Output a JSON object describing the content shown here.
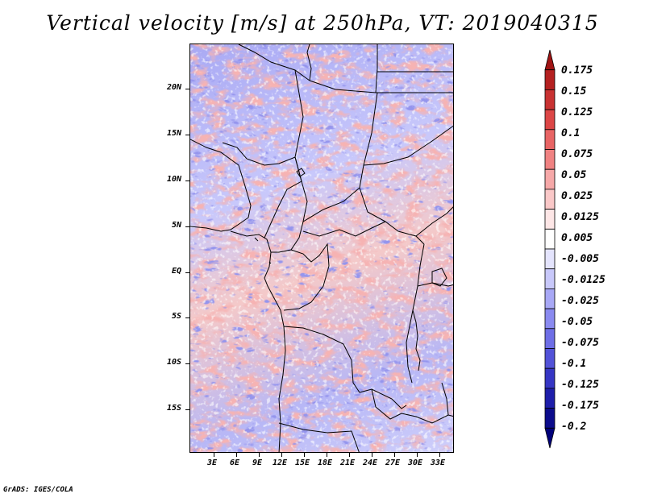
{
  "title": "Vertical velocity [m/s] at 250hPa, VT: 2019040315",
  "footer": "GrADS: IGES/COLA",
  "y_axis_labels": [
    "20N",
    "15N",
    "10N",
    "5N",
    "EQ",
    "5S",
    "10S",
    "15S"
  ],
  "x_axis_labels": [
    "3E",
    "6E",
    "9E",
    "12E",
    "15E",
    "18E",
    "21E",
    "24E",
    "27E",
    "30E",
    "33E"
  ],
  "legend": {
    "labels": [
      "0.175",
      "0.15",
      "0.125",
      "0.1",
      "0.075",
      "0.05",
      "0.025",
      "0.0125",
      "0.005",
      "-0.005",
      "-0.0125",
      "-0.025",
      "-0.05",
      "-0.075",
      "-0.1",
      "-0.125",
      "-0.175",
      "-0.2"
    ],
    "colors": [
      "#a01414",
      "#b42020",
      "#c83232",
      "#dc4646",
      "#e86464",
      "#f08282",
      "#f6a8a8",
      "#fac8c8",
      "#fde6e6",
      "#ffffff",
      "#e4e4fd",
      "#c8c8fa",
      "#a8a8f6",
      "#8a8af0",
      "#6e6ee6",
      "#5252d8",
      "#3636c4",
      "#1e1eaa",
      "#0c0c8c",
      "#00007a"
    ]
  },
  "colors": {
    "positive": "#e05050",
    "negative": "#4848d8",
    "border": "#000000"
  }
}
